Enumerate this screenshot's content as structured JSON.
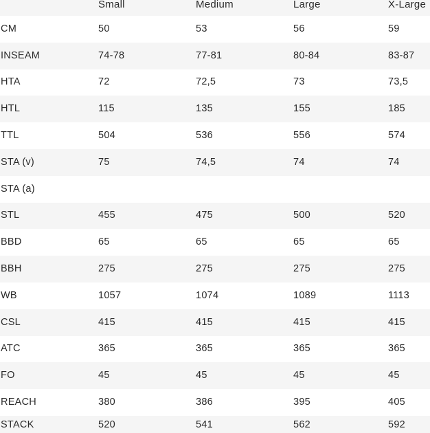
{
  "table": {
    "header": [
      "",
      "Small",
      "Medium",
      "Large",
      "X-Large"
    ],
    "rows": [
      {
        "label": "CM",
        "values": [
          "50",
          "53",
          "56",
          "59"
        ]
      },
      {
        "label": "INSEAM",
        "values": [
          "74-78",
          "77-81",
          "80-84",
          "83-87"
        ]
      },
      {
        "label": "HTA",
        "values": [
          "72",
          "72,5",
          "73",
          "73,5"
        ]
      },
      {
        "label": "HTL",
        "values": [
          "115",
          "135",
          "155",
          "185"
        ]
      },
      {
        "label": "TTL",
        "values": [
          "504",
          "536",
          "556",
          "574"
        ]
      },
      {
        "label": "STA (v)",
        "values": [
          "75",
          "74,5",
          "74",
          "74"
        ]
      },
      {
        "label": "STA (a)",
        "values": [
          "",
          "",
          "",
          ""
        ]
      },
      {
        "label": "STL",
        "values": [
          "455",
          "475",
          "500",
          "520"
        ]
      },
      {
        "label": "BBD",
        "values": [
          "65",
          "65",
          "65",
          "65"
        ]
      },
      {
        "label": "BBH",
        "values": [
          "275",
          "275",
          "275",
          "275"
        ]
      },
      {
        "label": "WB",
        "values": [
          "1057",
          "1074",
          "1089",
          "1113"
        ]
      },
      {
        "label": "CSL",
        "values": [
          "415",
          "415",
          "415",
          "415"
        ]
      },
      {
        "label": "ATC",
        "values": [
          "365",
          "365",
          "365",
          "365"
        ]
      },
      {
        "label": "FO",
        "values": [
          "45",
          "45",
          "45",
          "45"
        ]
      },
      {
        "label": "REACH",
        "values": [
          "380",
          "386",
          "395",
          "405"
        ]
      },
      {
        "label": "STACK",
        "values": [
          "520",
          "541",
          "562",
          "592"
        ]
      }
    ],
    "colors": {
      "row_alt_bg": "#f5f5f5",
      "row_bg": "#ffffff",
      "text": "#2b2b2b"
    }
  }
}
